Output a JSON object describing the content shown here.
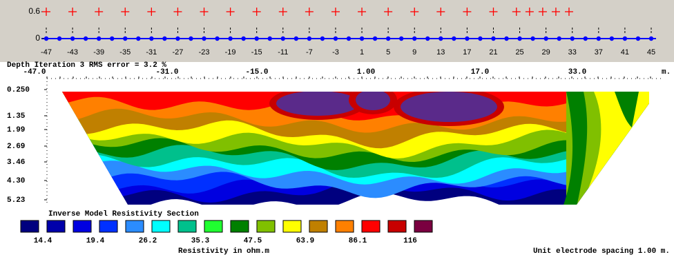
{
  "electrode_plot": {
    "yticks": [
      0.6,
      0
    ],
    "xticks": [
      -47,
      -43,
      -39,
      -35,
      -31,
      -27,
      -23,
      -19,
      -15,
      -11,
      -7,
      -3,
      1,
      5,
      9,
      13,
      17,
      21,
      25,
      29,
      33,
      37,
      41,
      45
    ],
    "data_points_x": [
      -47,
      -43,
      -39,
      -35,
      -31,
      -27,
      -23,
      -19,
      -15,
      -11,
      -7,
      -3,
      1,
      5,
      9,
      13,
      17,
      21,
      24.5,
      26.5,
      28.5,
      30.5,
      32.5
    ]
  },
  "section": {
    "header": "Depth   Iteration 3 RMS error = 3.2 %",
    "x_labels": [
      "-47.0",
      "-31.0",
      "-15.0",
      "1.00",
      "17.0",
      "33.0"
    ],
    "x_unit": "m.",
    "depth_labels": [
      "0.250",
      "1.35",
      "1.99",
      "2.69",
      "3.46",
      "4.30",
      "5.23"
    ]
  },
  "legend": {
    "title": "Inverse Model Resistivity Section",
    "colors": [
      "#00007f",
      "#0000aa",
      "#0000e0",
      "#0030ff",
      "#2b8cff",
      "#00ffff",
      "#00c08c",
      "#20ff30",
      "#008000",
      "#80c000",
      "#ffff00",
      "#c08000",
      "#ff8000",
      "#ff0000",
      "#c80000",
      "#7a0040"
    ],
    "labels": [
      "14.4",
      "19.4",
      "26.2",
      "35.3",
      "47.5",
      "63.9",
      "86.1",
      "116"
    ],
    "caption": "Resistivity in ohm.m"
  },
  "footer": "Unit electrode spacing 1.00 m."
}
